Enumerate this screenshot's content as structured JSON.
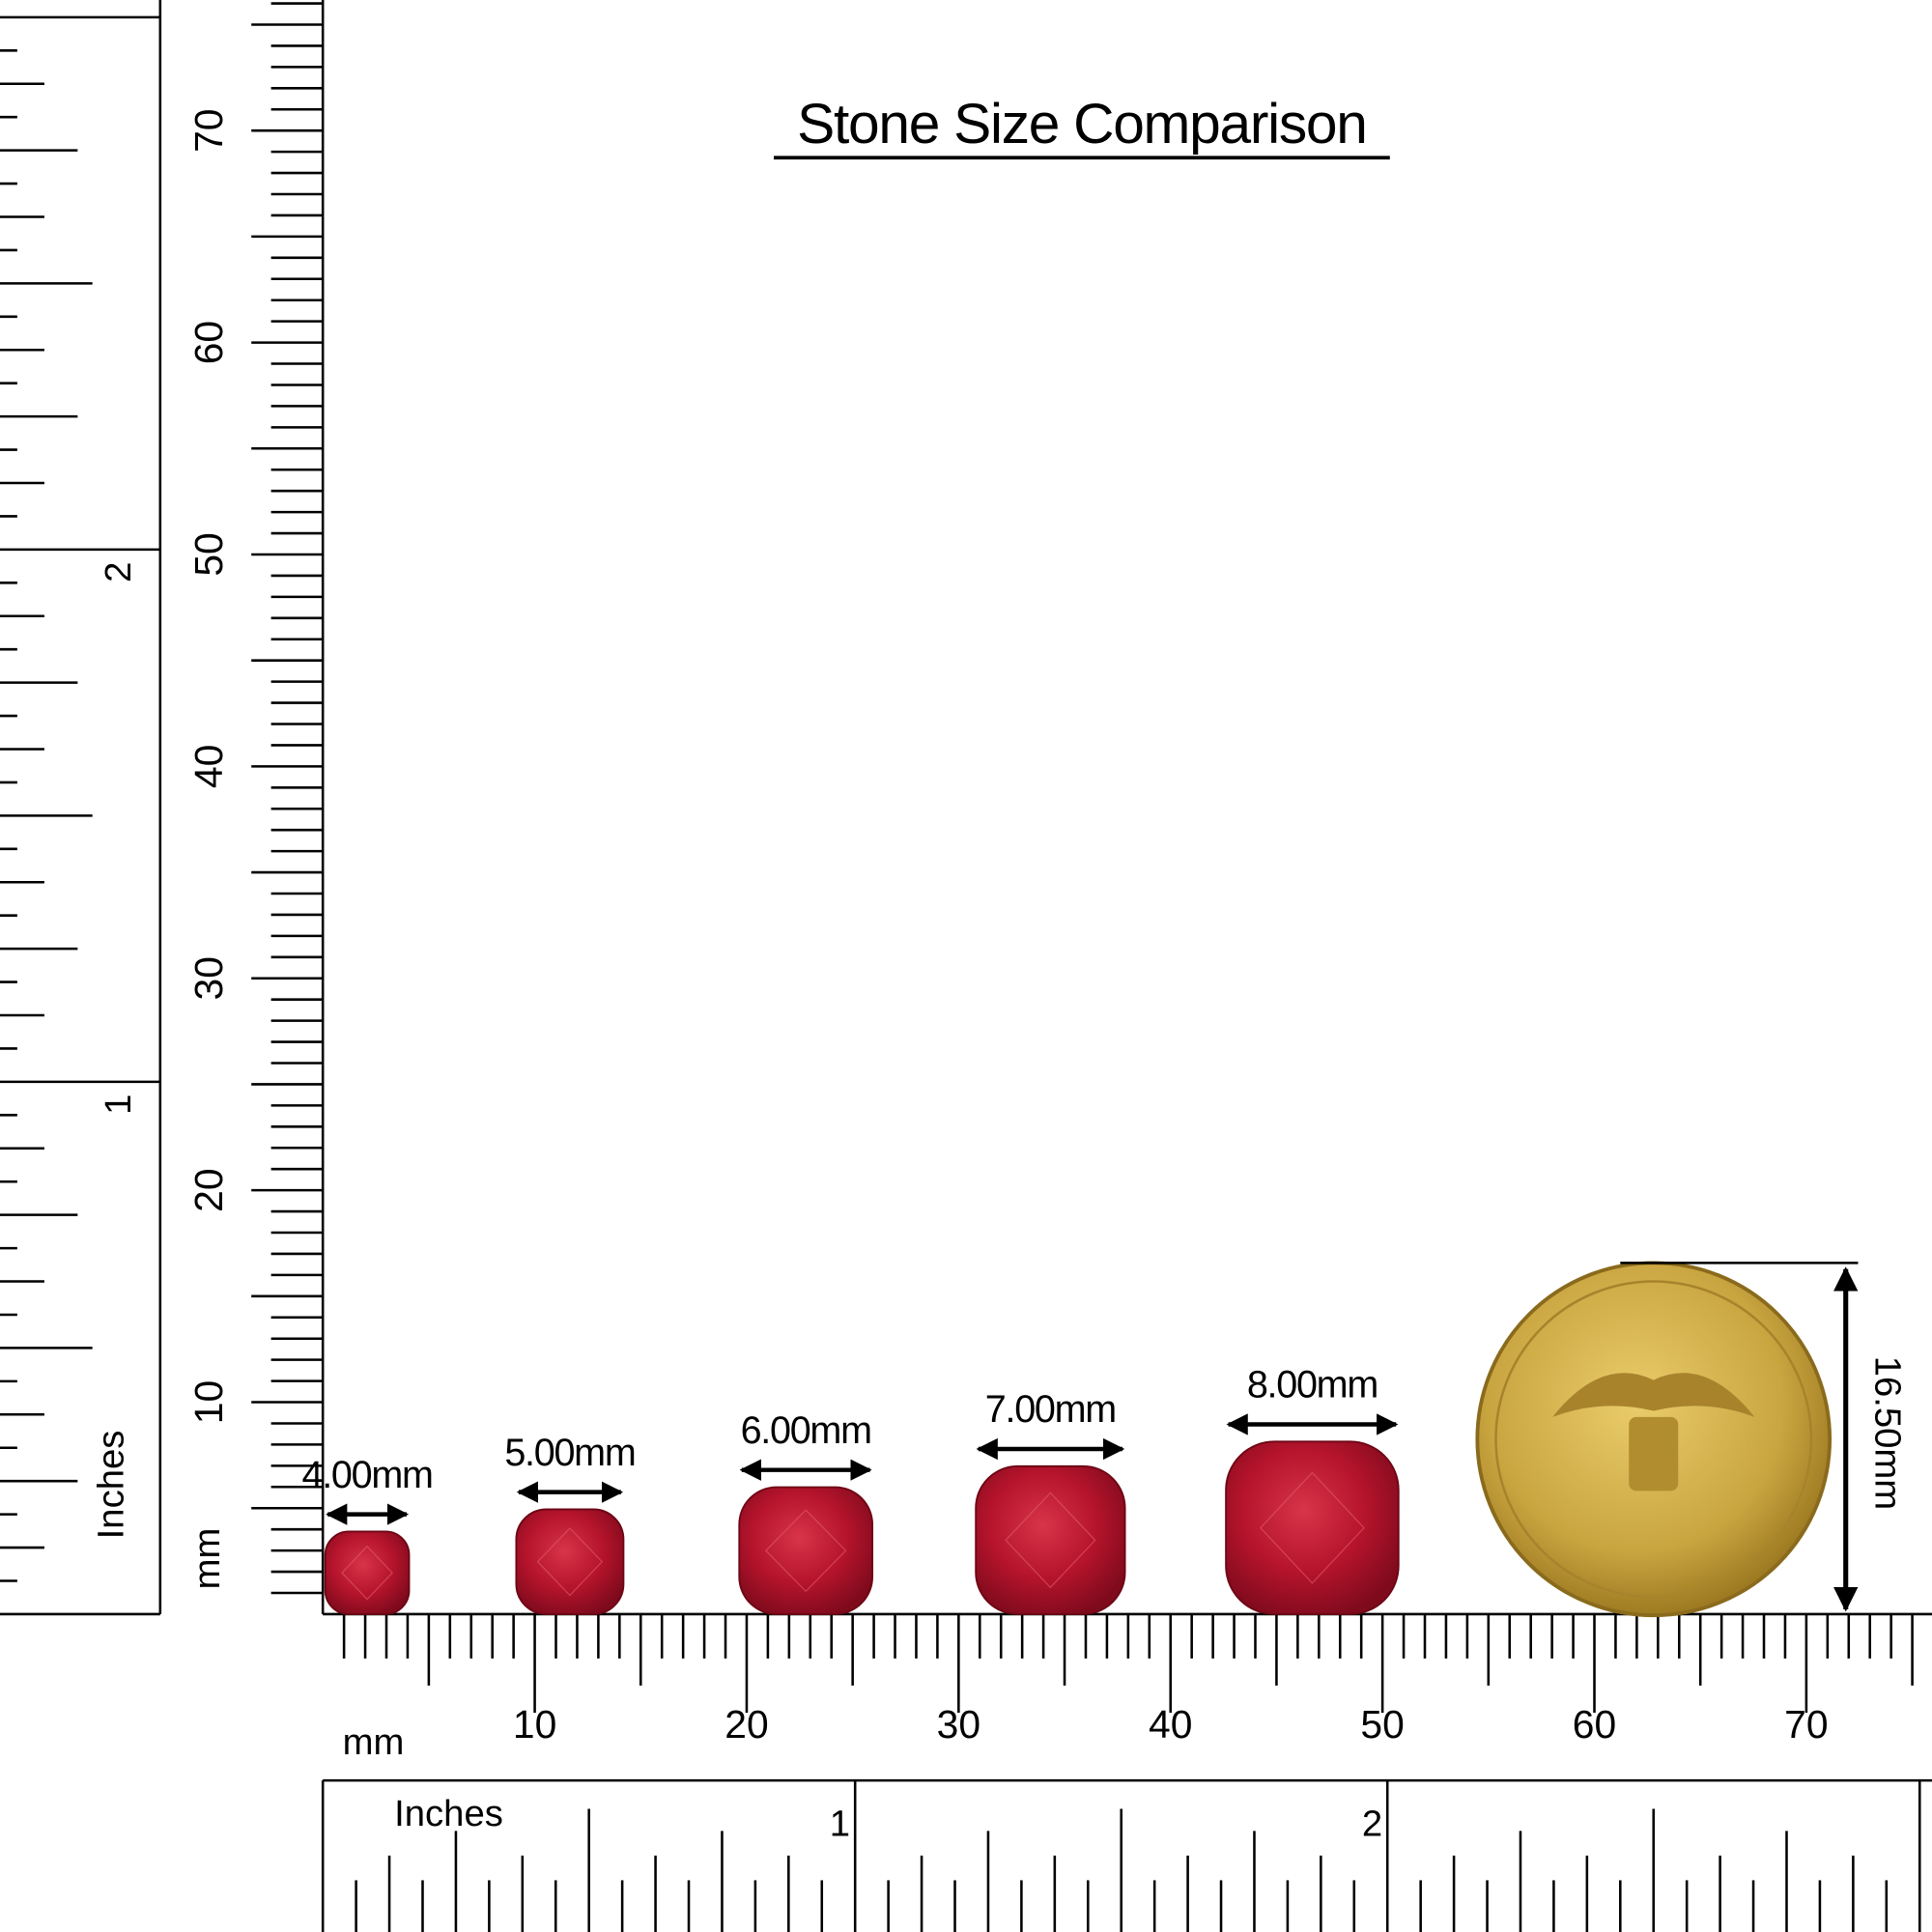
{
  "title": "Stone Size Comparison",
  "stones": [
    {
      "label": "4.00mm"
    },
    {
      "label": "5.00mm"
    },
    {
      "label": "6.00mm"
    },
    {
      "label": "7.00mm"
    },
    {
      "label": "8.00mm"
    }
  ],
  "coin": {
    "label": "16.50mm"
  },
  "bottom_ruler": {
    "mm_unit": "mm",
    "inch_unit": "Inches",
    "mm_labels": [
      10,
      20,
      30,
      40,
      50,
      60,
      70
    ],
    "inch_labels": [
      1,
      2
    ]
  },
  "left_ruler": {
    "mm_unit": "mm",
    "inch_unit": "Inches",
    "mm_labels": [
      10,
      20,
      30,
      40,
      50,
      60,
      70
    ],
    "inch_labels": [
      1,
      2
    ]
  }
}
